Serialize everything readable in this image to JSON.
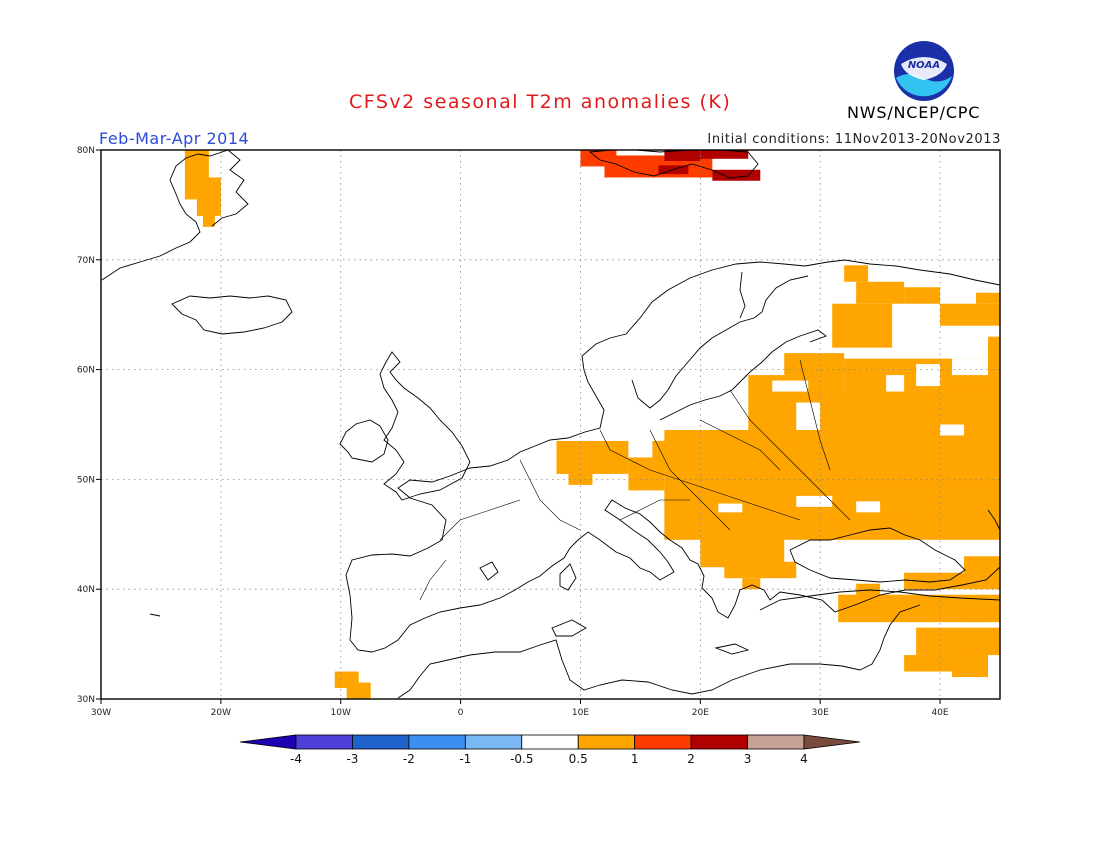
{
  "header": {
    "title": "CFSv2 seasonal T2m anomalies (K)",
    "season": "Feb-Mar-Apr 2014",
    "initial_conditions": "Initial conditions: 11Nov2013-20Nov2013",
    "agency": "NWS/NCEP/CPC",
    "logo_text": "NOAA"
  },
  "map": {
    "lon_range": [
      -30,
      45
    ],
    "lat_range": [
      30,
      80
    ],
    "lon_ticks": [
      {
        "value": -30,
        "label": "30W"
      },
      {
        "value": -20,
        "label": "20W"
      },
      {
        "value": -10,
        "label": "10W"
      },
      {
        "value": 0,
        "label": "0"
      },
      {
        "value": 10,
        "label": "10E"
      },
      {
        "value": 20,
        "label": "20E"
      },
      {
        "value": 30,
        "label": "30E"
      },
      {
        "value": 40,
        "label": "40E"
      }
    ],
    "lat_ticks": [
      {
        "value": 80,
        "label": "80N"
      },
      {
        "value": 70,
        "label": "70N"
      },
      {
        "value": 60,
        "label": "60N"
      },
      {
        "value": 50,
        "label": "50N"
      },
      {
        "value": 40,
        "label": "40N"
      },
      {
        "value": 30,
        "label": "30N"
      }
    ],
    "grid": true,
    "anomaly_regions": [
      {
        "category": "0.5 to 1",
        "color": "#ffa500",
        "cells": [
          [
            -23,
            -21,
            75.5,
            80
          ],
          [
            -22,
            -20,
            74,
            77.5
          ],
          [
            -21.5,
            -20.5,
            73,
            74.5
          ],
          [
            -10.5,
            -8.5,
            31,
            32.5
          ],
          [
            -9.5,
            -7.5,
            30,
            31.5
          ],
          [
            8,
            14,
            50.5,
            53.5
          ],
          [
            9,
            11,
            49.5,
            51
          ],
          [
            14,
            17,
            49,
            52
          ],
          [
            16,
            20,
            51,
            53.5
          ],
          [
            17,
            32,
            44.5,
            54.5
          ],
          [
            20,
            27,
            42,
            45
          ],
          [
            22,
            28,
            41,
            42.5
          ],
          [
            23.5,
            25,
            40,
            41
          ],
          [
            24,
            28,
            53,
            59.5
          ],
          [
            27,
            32,
            57,
            61.5
          ],
          [
            30,
            45,
            48,
            58
          ],
          [
            32,
            45,
            57,
            61
          ],
          [
            31,
            45,
            44.5,
            49.5
          ],
          [
            36,
            45,
            50,
            58
          ],
          [
            35,
            38,
            45,
            46.5
          ],
          [
            31,
            36,
            62,
            66
          ],
          [
            33,
            37,
            66,
            68
          ],
          [
            32,
            34,
            68,
            69.5
          ],
          [
            37,
            40,
            66,
            67.5
          ],
          [
            40,
            45,
            64,
            66
          ],
          [
            43,
            45,
            66,
            67
          ],
          [
            44,
            45,
            60,
            63
          ],
          [
            31.5,
            45,
            37,
            39.5
          ],
          [
            33,
            35,
            39,
            40.5
          ],
          [
            37,
            45,
            40,
            41.5
          ],
          [
            42,
            45,
            40,
            43
          ],
          [
            43,
            45,
            34,
            36.5
          ],
          [
            38,
            43,
            34,
            36.5
          ],
          [
            39,
            42,
            33,
            36
          ],
          [
            37,
            41,
            32.5,
            34
          ],
          [
            41,
            44,
            32,
            34.5
          ],
          [
            42,
            44,
            37,
            38
          ]
        ]
      },
      {
        "category": "1 to 2",
        "color": "#ff3c00",
        "cells": [
          [
            12,
            21,
            77.5,
            79.5
          ],
          [
            10,
            13,
            78.5,
            80
          ],
          [
            14,
            18,
            77.5,
            79
          ]
        ]
      },
      {
        "category": "2 to 3",
        "color": "#b00000",
        "cells": [
          [
            17,
            20,
            79,
            80
          ],
          [
            20,
            24,
            79.2,
            80
          ],
          [
            21,
            25,
            77.2,
            78.2
          ],
          [
            16.5,
            19,
            77.8,
            78.6
          ]
        ]
      }
    ],
    "gaps": [
      [
        21.5,
        23.5,
        47,
        47.8
      ],
      [
        35.5,
        37,
        58,
        59.5
      ],
      [
        40,
        42,
        54,
        55
      ],
      [
        38,
        40,
        58.5,
        60.5
      ],
      [
        41,
        44,
        59.5,
        61
      ],
      [
        26,
        29,
        58,
        59
      ],
      [
        28,
        31,
        47.5,
        48.5
      ],
      [
        33,
        35,
        47,
        48
      ]
    ]
  },
  "colorbar": {
    "colors": [
      "#1e00b4",
      "#4e3fd6",
      "#1f62cc",
      "#3c8ff0",
      "#7ab8f5",
      "#ffffff",
      "#ffa500",
      "#ff3c00",
      "#b00000",
      "#c7a195",
      "#7a4a3c"
    ],
    "labels": [
      "-4",
      "-3",
      "-2",
      "-1",
      "-0.5",
      "0.5",
      "1",
      "2",
      "3",
      "4"
    ]
  }
}
